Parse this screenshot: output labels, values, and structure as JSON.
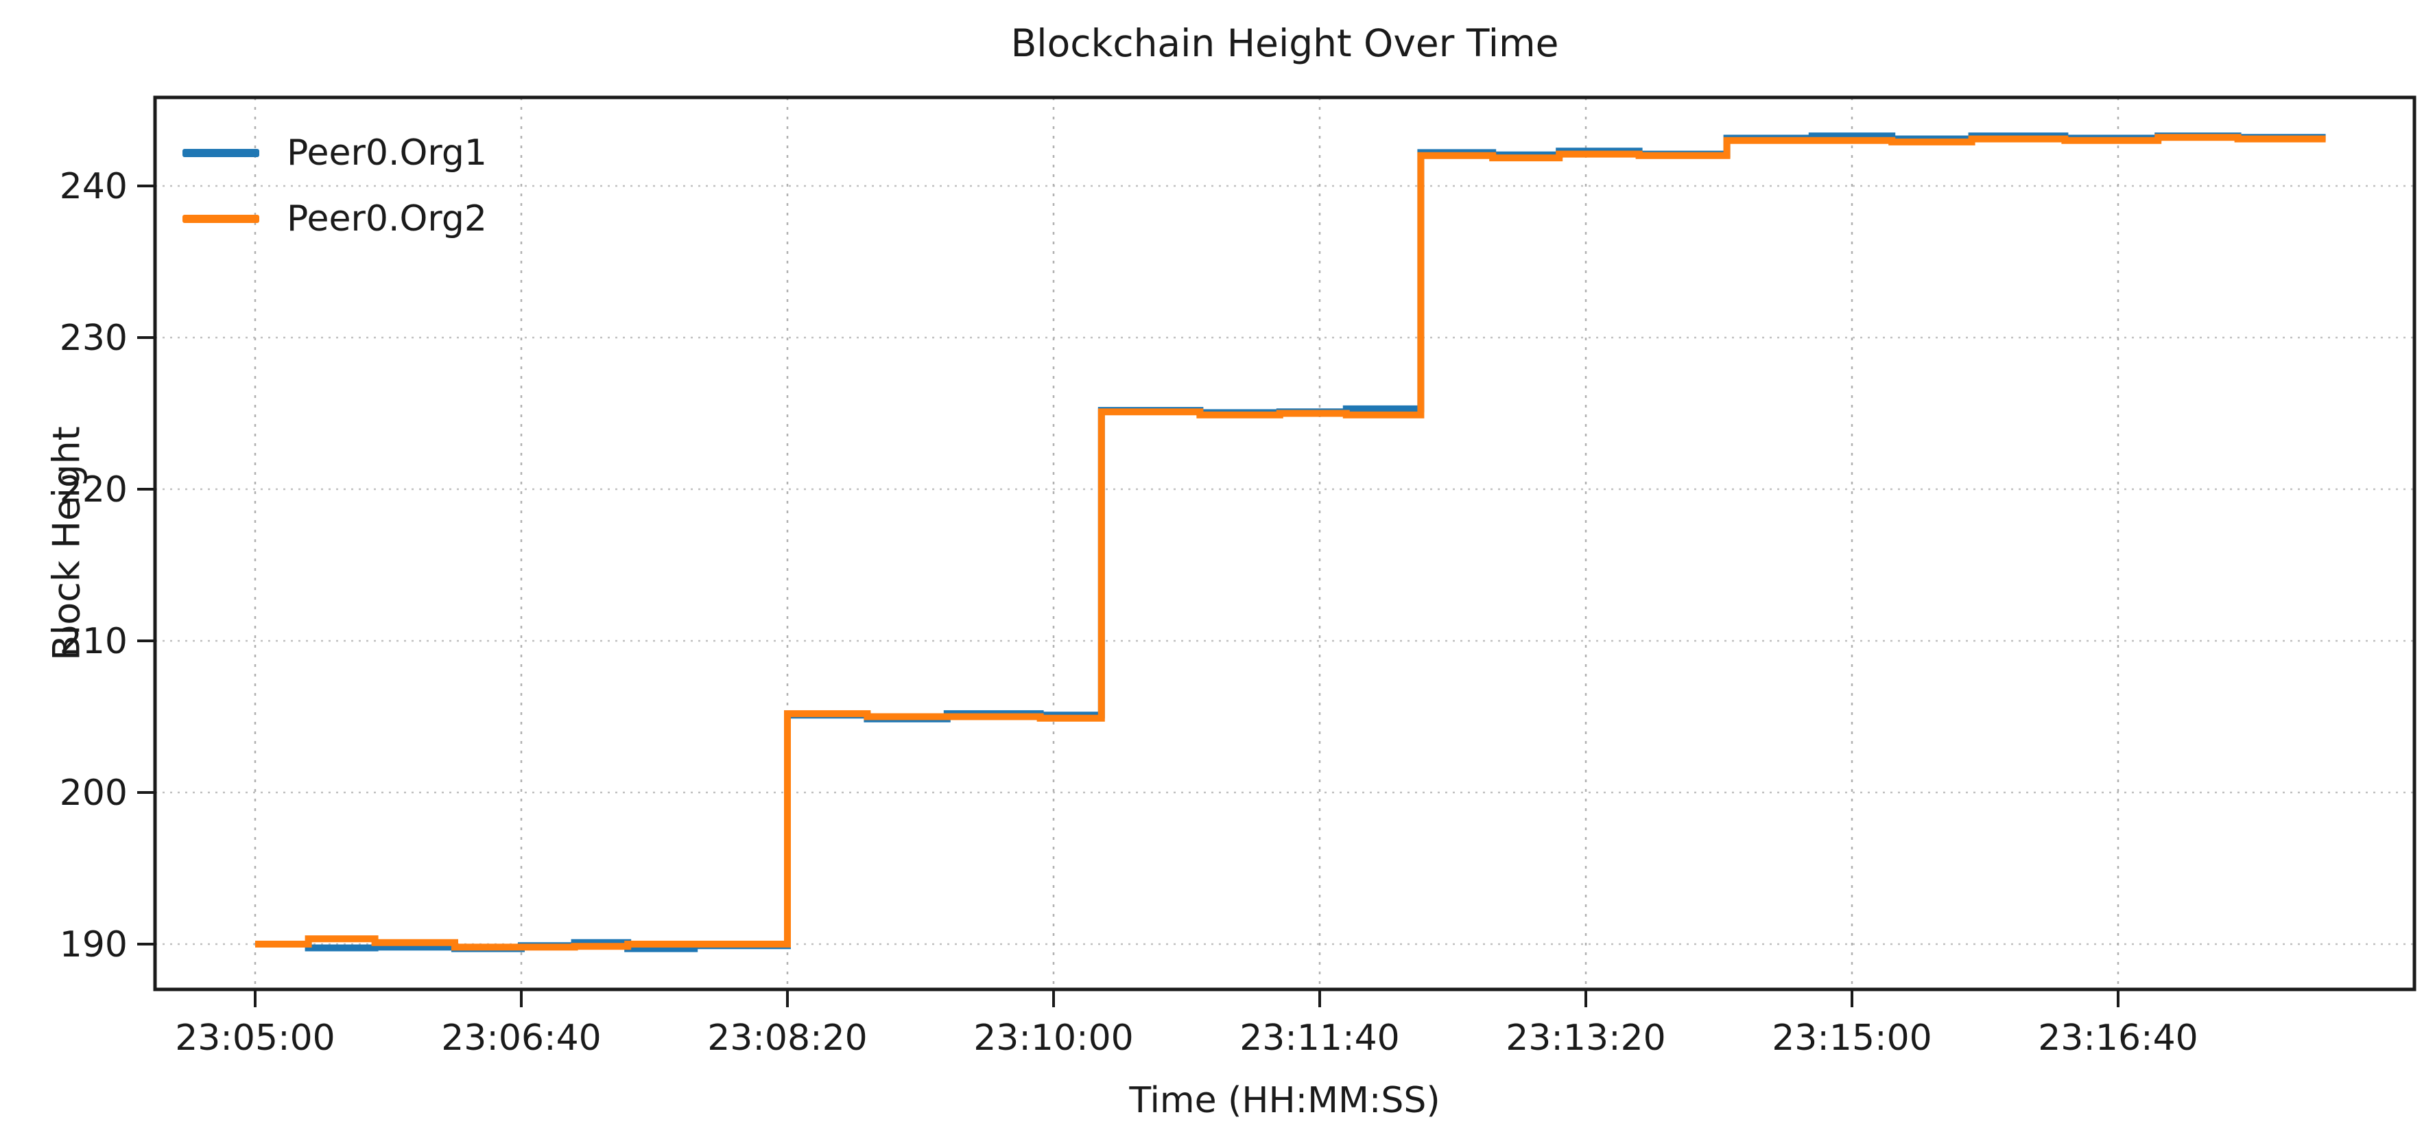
{
  "chart_data": {
    "type": "line",
    "line_style": "steps-post",
    "title": "Blockchain Height Over Time",
    "xlabel": "Time (HH:MM:SS)",
    "ylabel": "Block Height",
    "x_ticks": [
      "23:05:00",
      "23:06:40",
      "23:08:20",
      "23:10:00",
      "23:11:40",
      "23:13:20",
      "23:15:00",
      "23:16:40"
    ],
    "y_ticks": [
      190,
      200,
      210,
      220,
      230,
      240
    ],
    "xlim": [
      "23:04:22",
      "23:18:31"
    ],
    "ylim": [
      187.0,
      245.8
    ],
    "grid": true,
    "grid_style": {
      "vertical": "dashed",
      "horizontal": "dotted"
    },
    "legend_position": "upper-left",
    "legend_frame": false,
    "colors": {
      "series1": "#1f77b4",
      "series2": "#ff7f0e",
      "spine": "#1a1a1a",
      "grid_vertical": "#b0b0b0",
      "grid_horizontal": "#c0c0c0",
      "background": "#ffffff",
      "text": "#1a1a1a"
    },
    "series": [
      {
        "name": "Peer0.Org1",
        "color": "#1f77b4",
        "points": [
          [
            "23:05:00",
            190.0
          ],
          [
            "23:05:20",
            189.75
          ],
          [
            "23:05:45",
            189.8
          ],
          [
            "23:06:15",
            189.7
          ],
          [
            "23:06:40",
            189.9
          ],
          [
            "23:07:00",
            190.1
          ],
          [
            "23:07:20",
            189.7
          ],
          [
            "23:07:45",
            189.9
          ],
          [
            "23:08:20",
            205.1
          ],
          [
            "23:08:50",
            204.85
          ],
          [
            "23:09:20",
            205.2
          ],
          [
            "23:09:55",
            205.1
          ],
          [
            "23:10:18",
            225.2
          ],
          [
            "23:10:55",
            225.05
          ],
          [
            "23:11:25",
            225.1
          ],
          [
            "23:11:50",
            225.3
          ],
          [
            "23:12:18",
            242.2
          ],
          [
            "23:12:45",
            242.05
          ],
          [
            "23:13:10",
            242.3
          ],
          [
            "23:13:40",
            242.1
          ],
          [
            "23:14:13",
            243.15
          ],
          [
            "23:14:45",
            243.3
          ],
          [
            "23:15:15",
            243.1
          ],
          [
            "23:15:45",
            243.3
          ],
          [
            "23:16:20",
            243.15
          ],
          [
            "23:16:55",
            243.3
          ],
          [
            "23:17:25",
            243.2
          ],
          [
            "23:17:58",
            243.2
          ]
        ]
      },
      {
        "name": "Peer0.Org2",
        "color": "#ff7f0e",
        "points": [
          [
            "23:05:00",
            190.0
          ],
          [
            "23:05:20",
            190.35
          ],
          [
            "23:05:45",
            190.1
          ],
          [
            "23:06:15",
            189.8
          ],
          [
            "23:06:40",
            189.8
          ],
          [
            "23:07:00",
            189.85
          ],
          [
            "23:07:20",
            190.0
          ],
          [
            "23:07:45",
            190.0
          ],
          [
            "23:08:20",
            205.2
          ],
          [
            "23:08:50",
            205.0
          ],
          [
            "23:09:20",
            205.0
          ],
          [
            "23:09:55",
            204.9
          ],
          [
            "23:10:18",
            225.1
          ],
          [
            "23:10:55",
            224.9
          ],
          [
            "23:11:25",
            225.0
          ],
          [
            "23:11:50",
            224.9
          ],
          [
            "23:12:18",
            242.0
          ],
          [
            "23:12:45",
            241.85
          ],
          [
            "23:13:10",
            242.1
          ],
          [
            "23:13:40",
            242.0
          ],
          [
            "23:14:13",
            243.0
          ],
          [
            "23:14:45",
            243.0
          ],
          [
            "23:15:15",
            242.9
          ],
          [
            "23:15:45",
            243.1
          ],
          [
            "23:16:20",
            243.0
          ],
          [
            "23:16:55",
            243.2
          ],
          [
            "23:17:25",
            243.1
          ],
          [
            "23:17:58",
            243.1
          ]
        ]
      }
    ]
  }
}
